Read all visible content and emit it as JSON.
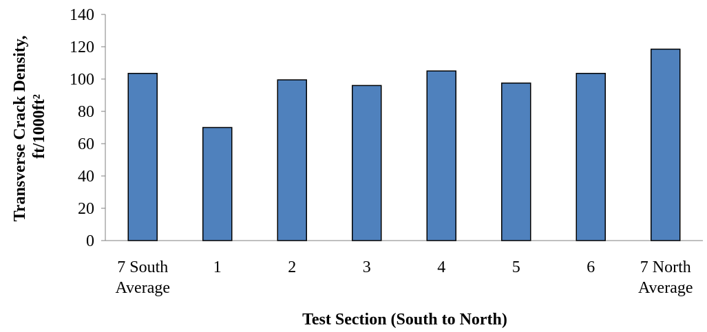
{
  "chart_data": {
    "type": "bar",
    "categories": [
      [
        "7 South",
        "Average"
      ],
      [
        "1"
      ],
      [
        "2"
      ],
      [
        "3"
      ],
      [
        "4"
      ],
      [
        "5"
      ],
      [
        "6"
      ],
      [
        "7 North",
        "Average"
      ]
    ],
    "values": [
      103.5,
      70,
      99.5,
      96,
      105,
      97.5,
      103.5,
      118.5
    ],
    "title": "",
    "xlabel": "Test Section (South to North)",
    "ylabel_lines": [
      "Transverse Crack Density,",
      "ft/1000ft²"
    ],
    "ylim": [
      0,
      140
    ],
    "yticks": [
      0,
      20,
      40,
      60,
      80,
      100,
      120,
      140
    ],
    "grid": false,
    "legend": "none",
    "colors": {
      "bar_fill": "#4f81bd",
      "bar_stroke": "#000000",
      "axis": "#7f7f7f"
    }
  }
}
